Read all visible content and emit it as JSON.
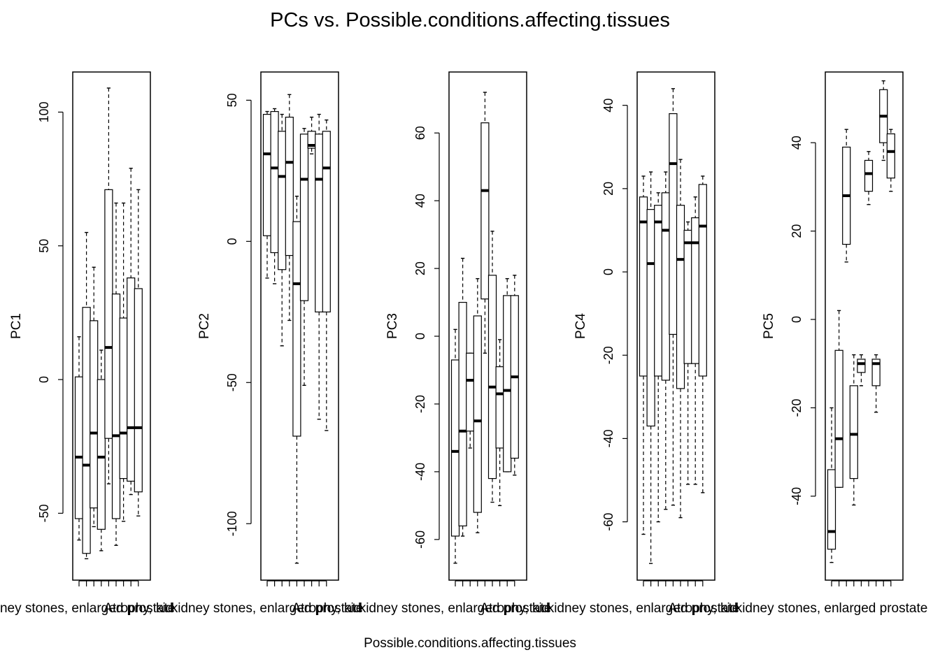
{
  "title": "PCs vs. Possible.conditions.affecting.tissues",
  "xlabel": "Possible.conditions.affecting.tissues",
  "colors": {
    "box_fill": "#ffffff",
    "stroke": "#000000",
    "median": "#000000"
  },
  "chart_data": [
    {
      "type": "boxplot",
      "ylabel": "PC1",
      "ylim": [
        -75,
        115
      ],
      "yticks": [
        -50,
        0,
        50,
        100
      ],
      "xtick_label_start": "kidney stones, enlarged prostate",
      "xtick_label_end": "Atrophy, kid",
      "boxes": [
        {
          "wlo": -60,
          "q1": -52,
          "med": -29,
          "q3": 1,
          "whi": 16
        },
        {
          "wlo": -67,
          "q1": -65,
          "med": -32,
          "q3": 27,
          "whi": 55
        },
        {
          "wlo": -55,
          "q1": -48,
          "med": -20,
          "q3": 22,
          "whi": 42
        },
        {
          "wlo": -64,
          "q1": -56,
          "med": -29,
          "q3": 0,
          "whi": 11
        },
        {
          "wlo": -39,
          "q1": -22,
          "med": 12,
          "q3": 71,
          "whi": 109
        },
        {
          "wlo": -62,
          "q1": -52,
          "med": -21,
          "q3": 32,
          "whi": 66
        },
        {
          "wlo": -53,
          "q1": -37,
          "med": -20,
          "q3": 23,
          "whi": 66
        },
        {
          "wlo": -43,
          "q1": -38,
          "med": -18,
          "q3": 38,
          "whi": 79
        },
        {
          "wlo": -51,
          "q1": -42,
          "med": -18,
          "q3": 34,
          "whi": 71
        }
      ]
    },
    {
      "type": "boxplot",
      "ylabel": "PC2",
      "ylim": [
        -120,
        60
      ],
      "yticks": [
        -100,
        -50,
        0,
        50
      ],
      "xtick_label_start": "kidney stones, enlarged prostate",
      "xtick_label_end": "Atrophy, kid",
      "boxes": [
        {
          "wlo": -13,
          "q1": 2,
          "med": 31,
          "q3": 45,
          "whi": 46
        },
        {
          "wlo": -15,
          "q1": -4,
          "med": 26,
          "q3": 46,
          "whi": 47
        },
        {
          "wlo": -37,
          "q1": -10,
          "med": 23,
          "q3": 39,
          "whi": 45
        },
        {
          "wlo": -28,
          "q1": -5,
          "med": 28,
          "q3": 44,
          "whi": 52
        },
        {
          "wlo": -114,
          "q1": -69,
          "med": -15,
          "q3": 7,
          "whi": 16
        },
        {
          "wlo": -51,
          "q1": -21,
          "med": 22,
          "q3": 38,
          "whi": 40
        },
        {
          "wlo": 31,
          "q1": 33,
          "med": 34,
          "q3": 39,
          "whi": 44
        },
        {
          "wlo": -63,
          "q1": -25,
          "med": 22,
          "q3": 38,
          "whi": 45
        },
        {
          "wlo": -67,
          "q1": -25,
          "med": 26,
          "q3": 39,
          "whi": 43
        }
      ]
    },
    {
      "type": "boxplot",
      "ylabel": "PC3",
      "ylim": [
        -72,
        78
      ],
      "yticks": [
        -60,
        -40,
        -20,
        0,
        20,
        40,
        60
      ],
      "xtick_label_start": "kidney stones, enlarged prostate",
      "xtick_label_end": "Atrophy, kid",
      "boxes": [
        {
          "wlo": -67,
          "q1": -59,
          "med": -34,
          "q3": -7,
          "whi": 2
        },
        {
          "wlo": -59,
          "q1": -56,
          "med": -28,
          "q3": 10,
          "whi": 23
        },
        {
          "wlo": -33,
          "q1": -28,
          "med": -13,
          "q3": -5,
          "whi": -5
        },
        {
          "wlo": -58,
          "q1": -52,
          "med": -25,
          "q3": 6,
          "whi": 17
        },
        {
          "wlo": -5,
          "q1": 11,
          "med": 43,
          "q3": 63,
          "whi": 72
        },
        {
          "wlo": -49,
          "q1": -42,
          "med": -15,
          "q3": 18,
          "whi": 31
        },
        {
          "wlo": -50,
          "q1": -33,
          "med": -17,
          "q3": -9,
          "whi": -1
        },
        {
          "wlo": -40,
          "q1": -40,
          "med": -16,
          "q3": 12,
          "whi": 17
        },
        {
          "wlo": -41,
          "q1": -36,
          "med": -12,
          "q3": 12,
          "whi": 18
        }
      ]
    },
    {
      "type": "boxplot",
      "ylabel": "PC4",
      "ylim": [
        -74,
        48
      ],
      "yticks": [
        -60,
        -40,
        -20,
        0,
        20,
        40
      ],
      "xtick_label_start": "kidney stones, enlarged prostate",
      "xtick_label_end": "Atrophy, kid",
      "boxes": [
        {
          "wlo": -63,
          "q1": -25,
          "med": 12,
          "q3": 18,
          "whi": 23
        },
        {
          "wlo": -70,
          "q1": -37,
          "med": 2,
          "q3": 15,
          "whi": 24
        },
        {
          "wlo": -60,
          "q1": -25,
          "med": 12,
          "q3": 16,
          "whi": 19
        },
        {
          "wlo": -57,
          "q1": -26,
          "med": 10,
          "q3": 19,
          "whi": 24
        },
        {
          "wlo": -56,
          "q1": -15,
          "med": 26,
          "q3": 38,
          "whi": 44
        },
        {
          "wlo": -59,
          "q1": -28,
          "med": 3,
          "q3": 16,
          "whi": 27
        },
        {
          "wlo": -51,
          "q1": -22,
          "med": 7,
          "q3": 10,
          "whi": 12
        },
        {
          "wlo": -51,
          "q1": -22,
          "med": 7,
          "q3": 13,
          "whi": 18
        },
        {
          "wlo": -53,
          "q1": -25,
          "med": 11,
          "q3": 21,
          "whi": 23
        }
      ]
    },
    {
      "type": "boxplot",
      "ylabel": "PC5",
      "ylim": [
        -59,
        56
      ],
      "yticks": [
        -40,
        -20,
        0,
        20,
        40
      ],
      "xtick_label_start": "kidney stones, enlarged prostate",
      "xtick_label_end": "",
      "boxes": [
        {
          "wlo": -55,
          "q1": -52,
          "med": -48,
          "q3": -34,
          "whi": -20
        },
        {
          "wlo": -38,
          "q1": -38,
          "med": -27,
          "q3": -7,
          "whi": 2
        },
        {
          "wlo": 13,
          "q1": 17,
          "med": 28,
          "q3": 39,
          "whi": 43
        },
        {
          "wlo": -42,
          "q1": -36,
          "med": -26,
          "q3": -15,
          "whi": -8
        },
        {
          "wlo": -15,
          "q1": -12,
          "med": -10,
          "q3": -9,
          "whi": -8
        },
        {
          "wlo": 26,
          "q1": 29,
          "med": 33,
          "q3": 36,
          "whi": 38
        },
        {
          "wlo": -21,
          "q1": -15,
          "med": -10,
          "q3": -9,
          "whi": -8
        },
        {
          "wlo": 36,
          "q1": 40,
          "med": 46,
          "q3": 52,
          "whi": 54
        },
        {
          "wlo": 29,
          "q1": 32,
          "med": 38,
          "q3": 42,
          "whi": 43
        }
      ]
    }
  ]
}
